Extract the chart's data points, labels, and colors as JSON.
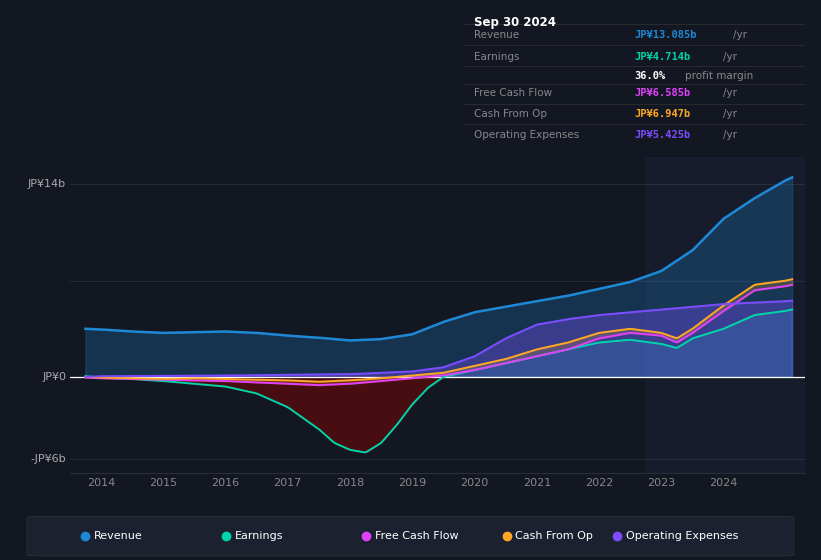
{
  "background_color": "#131722",
  "chart_bg": "#131722",
  "ylim": [
    -7,
    16
  ],
  "xlim": [
    2013.5,
    2025.3
  ],
  "x_ticks": [
    2014,
    2015,
    2016,
    2017,
    2018,
    2019,
    2020,
    2021,
    2022,
    2023,
    2024
  ],
  "y_label_14": "JP¥14b",
  "y_label_0": "JP¥0",
  "y_label_neg6": "-JP¥6b",
  "colors": {
    "revenue": "#1e88d4",
    "earnings": "#00d4aa",
    "free_cash_flow": "#e040fb",
    "cash_from_op": "#ffa726",
    "operating_expenses": "#7c4dff"
  },
  "legend": [
    {
      "label": "Revenue",
      "color": "#1e88d4"
    },
    {
      "label": "Earnings",
      "color": "#00d4aa"
    },
    {
      "label": "Free Cash Flow",
      "color": "#e040fb"
    },
    {
      "label": "Cash From Op",
      "color": "#ffa726"
    },
    {
      "label": "Operating Expenses",
      "color": "#7c4dff"
    }
  ],
  "info_title": "Sep 30 2024",
  "info_rows": [
    {
      "label": "Revenue",
      "value": "JP¥13.085b",
      "unit": "/yr",
      "color": "#1e88d4"
    },
    {
      "label": "Earnings",
      "value": "JP¥4.714b",
      "unit": "/yr",
      "color": "#00d4aa"
    },
    {
      "label": "",
      "value": "36.0%",
      "unit": "profit margin",
      "color": "#ffffff"
    },
    {
      "label": "Free Cash Flow",
      "value": "JP¥6.585b",
      "unit": "/yr",
      "color": "#e040fb"
    },
    {
      "label": "Cash From Op",
      "value": "JP¥6.947b",
      "unit": "/yr",
      "color": "#ffa726"
    },
    {
      "label": "Operating Expenses",
      "value": "JP¥5.425b",
      "unit": "/yr",
      "color": "#7c4dff"
    }
  ]
}
